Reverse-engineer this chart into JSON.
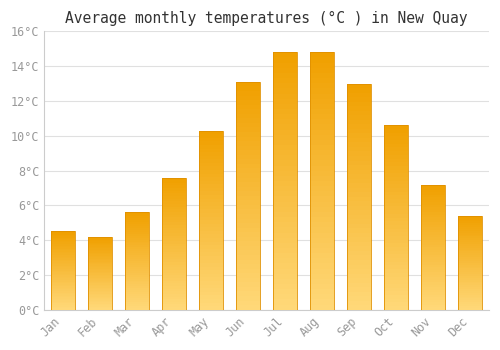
{
  "months": [
    "Jan",
    "Feb",
    "Mar",
    "Apr",
    "May",
    "Jun",
    "Jul",
    "Aug",
    "Sep",
    "Oct",
    "Nov",
    "Dec"
  ],
  "temperatures": [
    4.5,
    4.2,
    5.6,
    7.6,
    10.3,
    13.1,
    14.8,
    14.8,
    13.0,
    10.6,
    7.2,
    5.4
  ],
  "bar_color_top": "#F0A000",
  "bar_color_bottom": "#FFD878",
  "bar_edge_color": "#E09000",
  "title": "Average monthly temperatures (°C ) in New Quay",
  "ylim": [
    0,
    16
  ],
  "ytick_step": 2,
  "background_color": "#FFFFFF",
  "grid_color": "#E0E0E0",
  "title_fontsize": 10.5,
  "tick_fontsize": 8.5,
  "tick_color": "#999999",
  "font_family": "monospace",
  "bar_width": 0.65,
  "n_gradient_steps": 50
}
